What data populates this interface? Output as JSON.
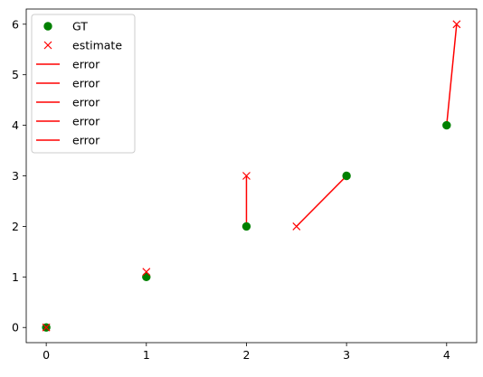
{
  "chart_data": {
    "type": "scatter",
    "title": "",
    "xlabel": "",
    "ylabel": "",
    "xlim": [
      -0.2,
      4.3
    ],
    "ylim": [
      -0.3,
      6.3
    ],
    "x_ticks": [
      0,
      1,
      2,
      3,
      4
    ],
    "y_ticks": [
      0,
      1,
      2,
      3,
      4,
      5,
      6
    ],
    "grid": false,
    "legend_position": "top-left",
    "colors": {
      "gt": "#008000",
      "estimate": "#ff0000",
      "error": "#ff0000"
    },
    "series": [
      {
        "name": "GT",
        "marker": "circle",
        "color": "#008000",
        "points": [
          [
            0,
            0
          ],
          [
            1,
            1
          ],
          [
            2,
            2
          ],
          [
            3,
            3
          ],
          [
            4,
            4
          ]
        ]
      },
      {
        "name": "estimate",
        "marker": "x",
        "color": "#ff0000",
        "points": [
          [
            0,
            0
          ],
          [
            1,
            1.1
          ],
          [
            2,
            3
          ],
          [
            2.5,
            2
          ],
          [
            4.1,
            6
          ]
        ]
      }
    ],
    "error_lines": [
      {
        "name": "error",
        "from": [
          0,
          0
        ],
        "to": [
          0,
          0
        ]
      },
      {
        "name": "error",
        "from": [
          1,
          1
        ],
        "to": [
          1,
          1.1
        ]
      },
      {
        "name": "error",
        "from": [
          2,
          2
        ],
        "to": [
          2,
          3
        ]
      },
      {
        "name": "error",
        "from": [
          3,
          3
        ],
        "to": [
          2.5,
          2
        ]
      },
      {
        "name": "error",
        "from": [
          4,
          4
        ],
        "to": [
          4.1,
          6
        ]
      }
    ],
    "legend": [
      {
        "label": "GT",
        "symbol": "circle",
        "color": "#008000"
      },
      {
        "label": "estimate",
        "symbol": "x",
        "color": "#ff0000"
      },
      {
        "label": "error",
        "symbol": "line",
        "color": "#ff0000"
      },
      {
        "label": "error",
        "symbol": "line",
        "color": "#ff0000"
      },
      {
        "label": "error",
        "symbol": "line",
        "color": "#ff0000"
      },
      {
        "label": "error",
        "symbol": "line",
        "color": "#ff0000"
      },
      {
        "label": "error",
        "symbol": "line",
        "color": "#ff0000"
      }
    ]
  }
}
